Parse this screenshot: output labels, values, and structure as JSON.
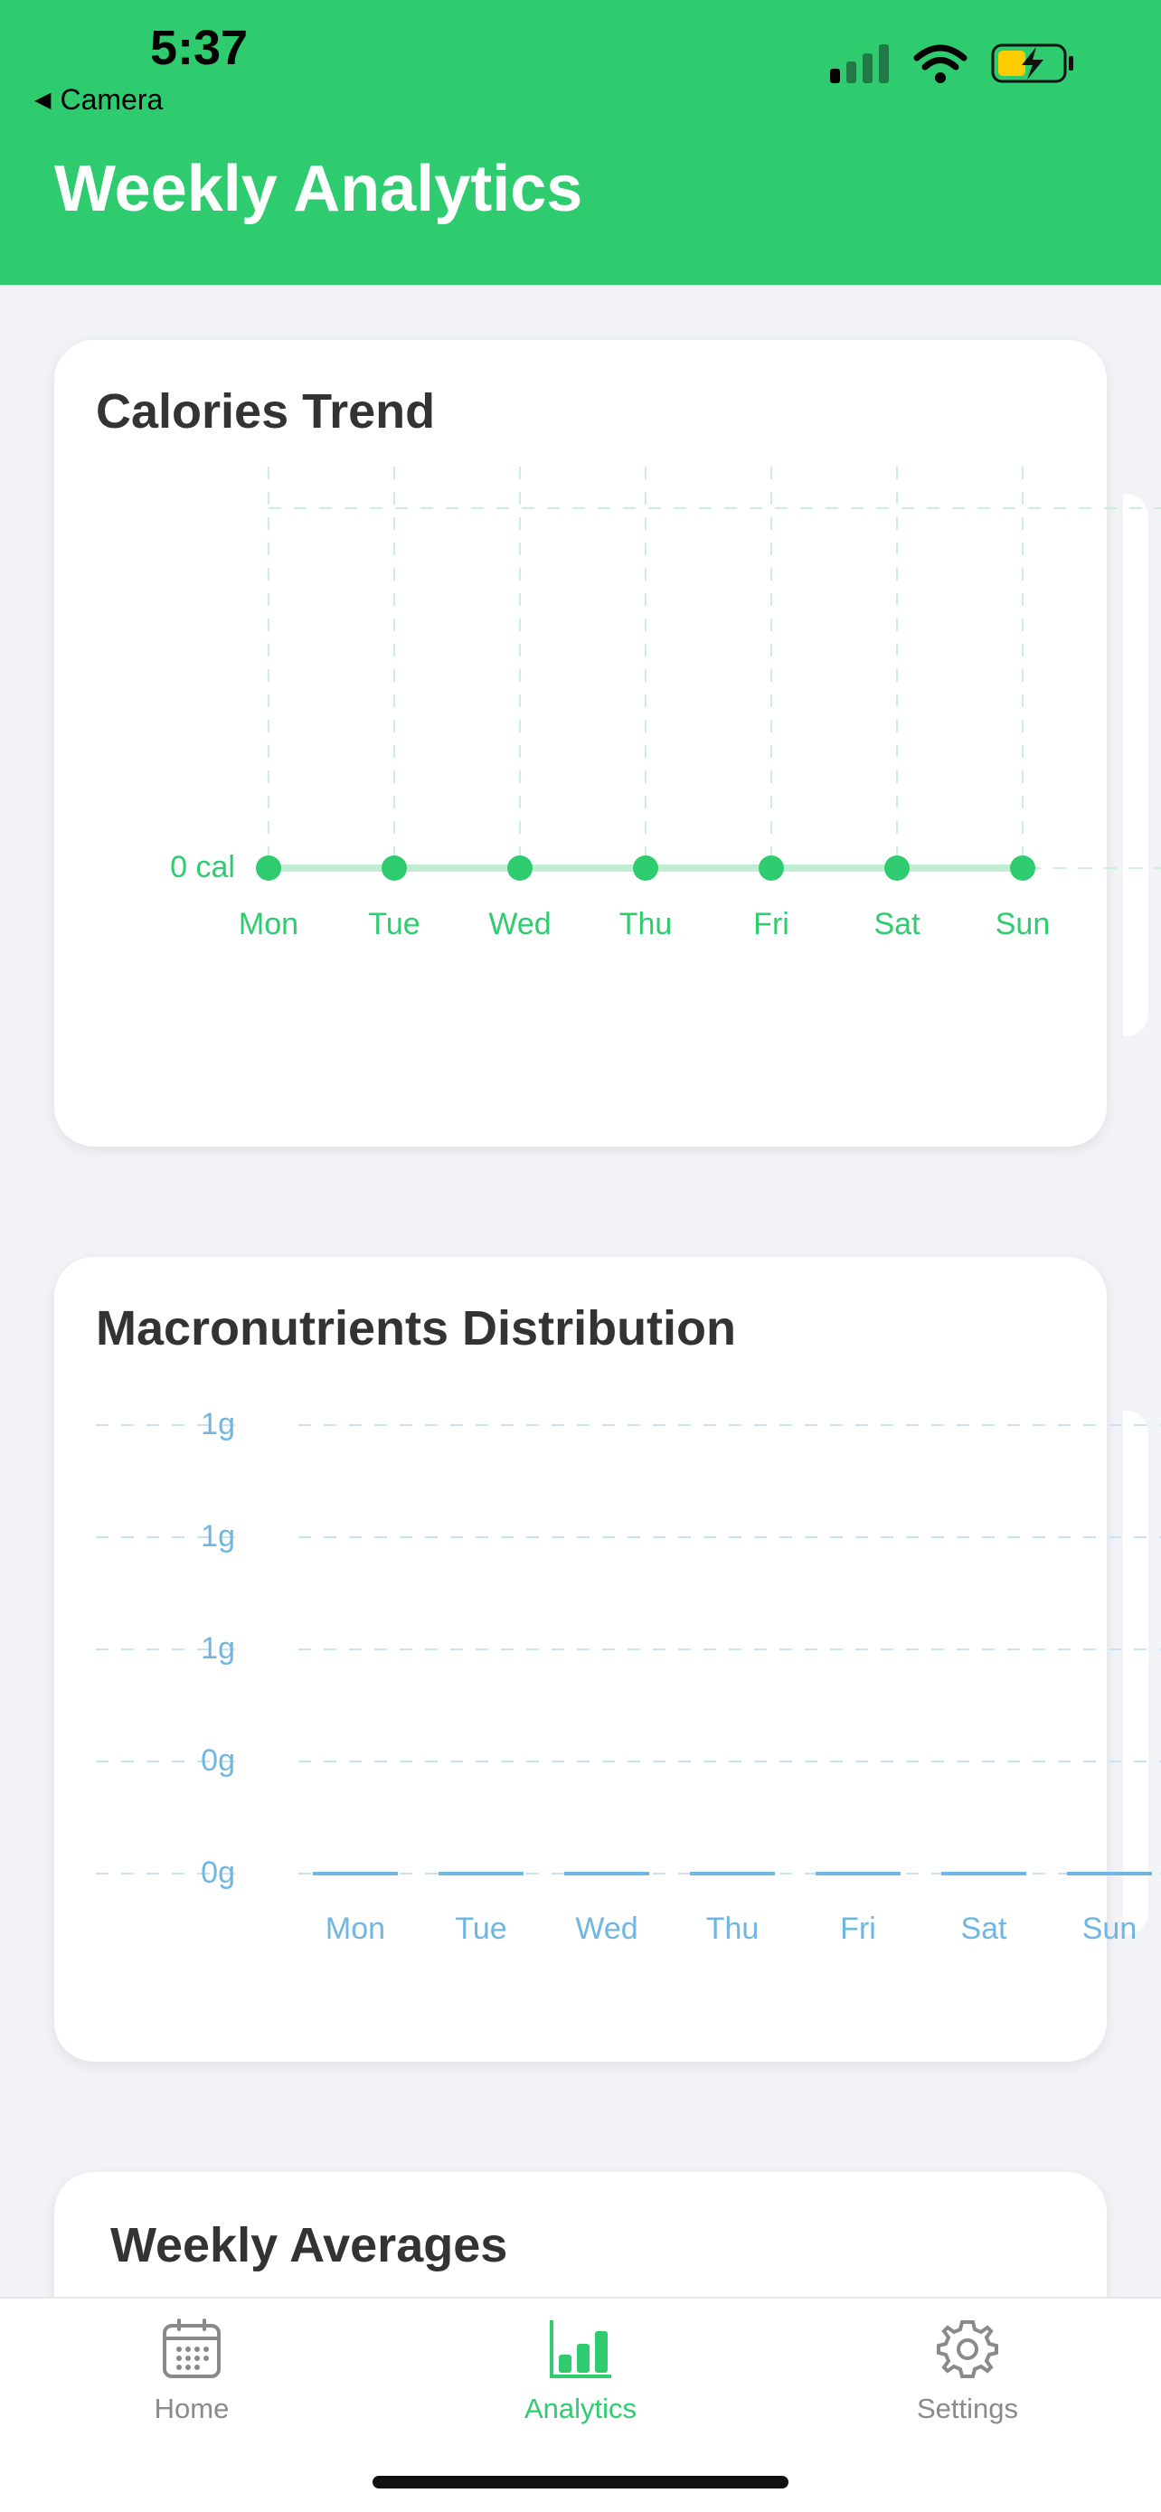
{
  "status_bar": {
    "time": "5:37",
    "back_app": "Camera",
    "icons": [
      "signal-icon",
      "wifi-icon",
      "battery-charging-icon"
    ]
  },
  "header": {
    "title": "Weekly Analytics",
    "color": "#2ecc6f"
  },
  "calories_card": {
    "title": "Calories Trend",
    "chart_data": {
      "type": "line",
      "categories": [
        "Mon",
        "Tue",
        "Wed",
        "Thu",
        "Fri",
        "Sat",
        "Sun"
      ],
      "series": [
        {
          "values": [
            0,
            0,
            0,
            0,
            0,
            0,
            0
          ]
        }
      ],
      "y_tick_labels": [
        "0 cal"
      ],
      "xlabel": "",
      "ylabel": "",
      "grid": true,
      "color": "#2ecc6f"
    }
  },
  "macros_card": {
    "title": "Macronutrients Distribution",
    "chart_data": {
      "type": "bar",
      "categories": [
        "Mon",
        "Tue",
        "Wed",
        "Thu",
        "Fri",
        "Sat",
        "Sun"
      ],
      "series": [
        {
          "values": [
            0,
            0,
            0,
            0,
            0,
            0,
            0
          ]
        }
      ],
      "y_tick_labels": [
        "1g",
        "1g",
        "1g",
        "0g",
        "0g"
      ],
      "xlabel": "",
      "ylabel": "",
      "grid": true,
      "color": "#6fb6e0"
    }
  },
  "averages_card": {
    "title": "Weekly Averages"
  },
  "tabbar": {
    "items": [
      {
        "label": "Home",
        "icon": "calendar-icon",
        "active": false
      },
      {
        "label": "Analytics",
        "icon": "bar-chart-icon",
        "active": true
      },
      {
        "label": "Settings",
        "icon": "gear-icon",
        "active": false
      }
    ]
  }
}
